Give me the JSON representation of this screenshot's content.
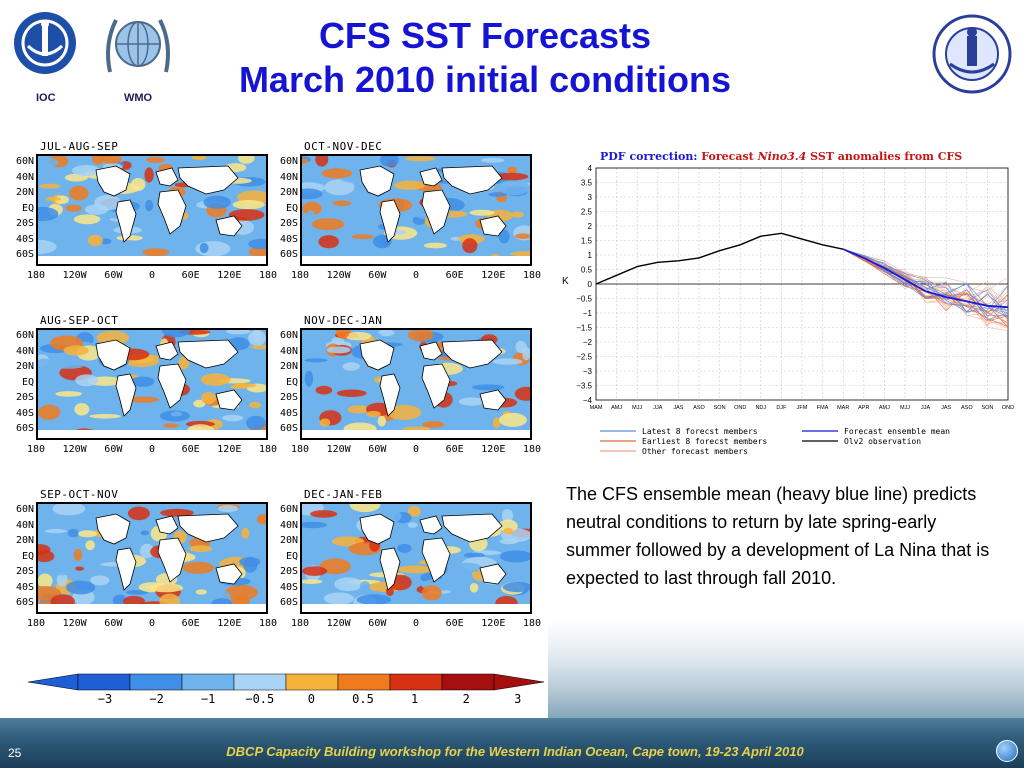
{
  "slide": {
    "title_line1": "CFS SST Forecasts",
    "title_line2": "March 2010 initial conditions",
    "ioc_label": "IOC",
    "wmo_label": "WMO",
    "page_number": "25",
    "footer": "DBCP Capacity Building workshop for the Western Indian Ocean, Cape town, 19-23 April 2010"
  },
  "maps": {
    "panels": [
      {
        "title": "JUL-AUG-SEP"
      },
      {
        "title": "OCT-NOV-DEC"
      },
      {
        "title": "AUG-SEP-OCT"
      },
      {
        "title": "NOV-DEC-JAN"
      },
      {
        "title": "SEP-OCT-NOV"
      },
      {
        "title": "DEC-JAN-FEB"
      }
    ],
    "lat_ticks": [
      "60N",
      "40N",
      "20N",
      "EQ",
      "20S",
      "40S",
      "60S"
    ],
    "lon_ticks": [
      "180",
      "120W",
      "60W",
      "0",
      "60E",
      "120E",
      "180"
    ],
    "colorbar_ticks": [
      "−3",
      "−2",
      "−1",
      "−0.5",
      "0",
      "0.5",
      "1",
      "2",
      "3"
    ],
    "colorbar_colors": [
      "#1e5fd6",
      "#3f8ee8",
      "#6fb3ec",
      "#a9d4f5",
      "#fbe68a",
      "#f7b23a",
      "#f07a1e",
      "#d83012",
      "#a50f0f"
    ]
  },
  "chart_data": {
    "type": "line",
    "title_parts": [
      "PDF correction:",
      "Forecast",
      "Nino3.4",
      "SST anomalies from CFS"
    ],
    "ylabel": "K",
    "ylim": [
      -4,
      4
    ],
    "y_ticks": [
      "4",
      "3.5",
      "3",
      "2.5",
      "2",
      "1.5",
      "1",
      "0.5",
      "0",
      "−0.5",
      "−1",
      "−1.5",
      "−2",
      "−2.5",
      "−3",
      "−3.5",
      "−4"
    ],
    "categories": [
      "MAM",
      "AMJ",
      "MJJ",
      "JJA",
      "JAS",
      "ASO",
      "SON",
      "OND",
      "NDJ",
      "DJF",
      "JFM",
      "FMA",
      "MAR",
      "APR",
      "AMJ",
      "MJJ",
      "JJA",
      "JAS",
      "ASO",
      "SON",
      "OND"
    ],
    "series": [
      {
        "name": "Olv2 observation",
        "color": "#000000",
        "values": [
          0.0,
          0.3,
          0.6,
          0.75,
          0.8,
          0.9,
          1.15,
          1.35,
          1.65,
          1.75,
          1.55,
          1.35,
          1.2,
          null,
          null,
          null,
          null,
          null,
          null,
          null,
          null
        ]
      },
      {
        "name": "Forecast ensemble mean",
        "color": "#1a1ad6",
        "values": [
          null,
          null,
          null,
          null,
          null,
          null,
          null,
          null,
          null,
          null,
          null,
          null,
          1.2,
          0.9,
          0.55,
          0.15,
          -0.25,
          -0.45,
          -0.6,
          -0.75,
          -0.8
        ]
      }
    ],
    "legend": [
      {
        "label": "Latest 8 forecst members",
        "color": "#5b8fe0"
      },
      {
        "label": "Forecast ensemble mean",
        "color": "#1a1ad6"
      },
      {
        "label": "Earliest 8 forecst members",
        "color": "#e06a3a"
      },
      {
        "label": "Olv2 observation",
        "color": "#000000"
      },
      {
        "label": "Other forecast members",
        "color": "#f2a28a"
      }
    ],
    "legend_position": "bottom"
  },
  "description": "The CFS ensemble mean (heavy blue line) predicts neutral conditions to return by late spring-early summer followed by a development of La Nina that is expected to last through fall 2010."
}
